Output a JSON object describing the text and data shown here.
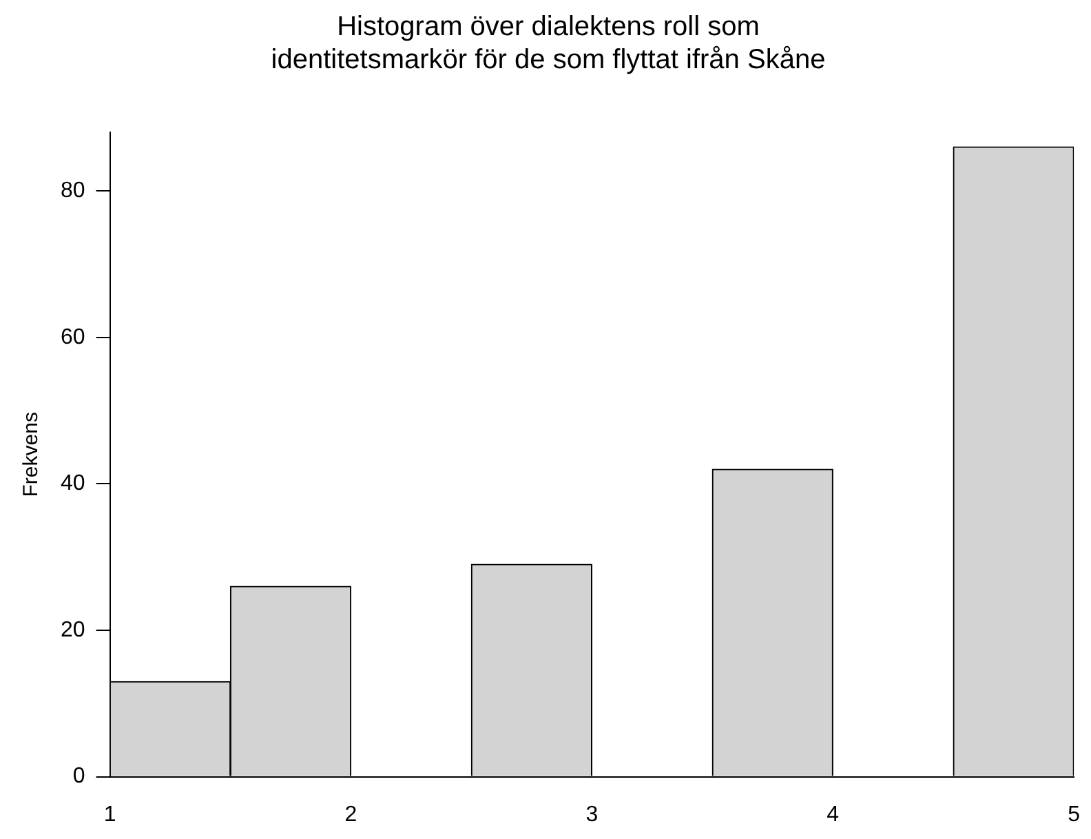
{
  "chart_data": {
    "type": "histogram",
    "title": [
      "Histogram över dialektens roll som",
      "identitetsmarkör för de som flyttat ifrån Skåne"
    ],
    "ylabel": "Frekvens",
    "bins": [
      1,
      1.5,
      2,
      2.5,
      3,
      3.5,
      4,
      4.5,
      5
    ],
    "values": [
      13,
      26,
      0,
      29,
      0,
      42,
      0,
      86
    ],
    "color": "#d3d3d3",
    "xlim": [
      1,
      5
    ],
    "xticks": [
      1,
      2,
      3,
      4,
      5
    ],
    "ylim": [
      0,
      88
    ],
    "yticks": [
      0,
      20,
      40,
      60,
      80
    ],
    "grid": false,
    "legend": false
  }
}
